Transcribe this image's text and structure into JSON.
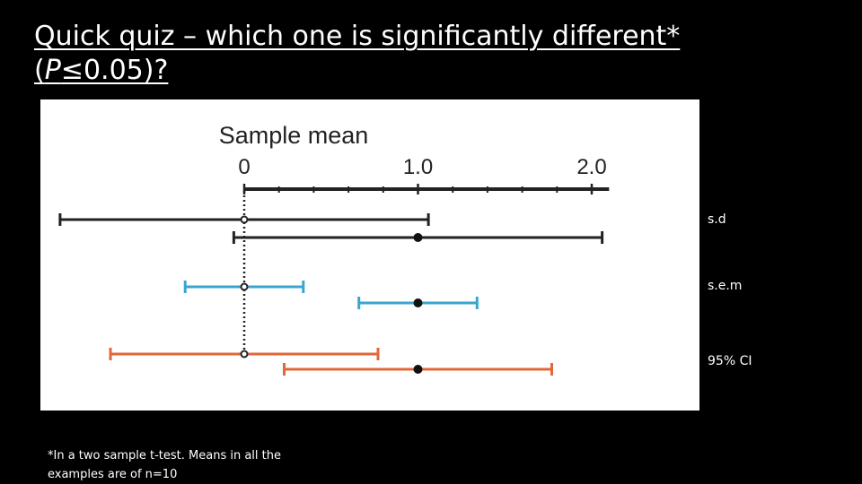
{
  "slide": {
    "title_line1": "Quick quiz – which one is significantly different*",
    "title_p": "P",
    "title_rest": "≤0.05)?",
    "title_open": "(",
    "footnote": "*In a two sample t-test. Means in all the examples are of n=10"
  },
  "row_labels": [
    "s.d",
    "s.e.m",
    "95% CI"
  ],
  "colors": {
    "sd": "#222222",
    "sem": "#3aa6d0",
    "ci": "#e2673a",
    "background": "#000000",
    "panel": "#ffffff"
  },
  "chart_data": {
    "type": "errorbar",
    "title": "Sample mean",
    "x_ticks": [
      {
        "value": 0,
        "label": "0"
      },
      {
        "value": 1.0,
        "label": "1.0"
      },
      {
        "value": 2.0,
        "label": "2.0"
      }
    ],
    "xlim": [
      0,
      2.1
    ],
    "minor_tick_step": 0.2,
    "reference_line_x": 0,
    "series": [
      {
        "group": "s.d",
        "mean": 0,
        "low": -1.06,
        "high": 1.06,
        "marker": "open",
        "color": "#222222"
      },
      {
        "group": "s.d",
        "mean": 1.0,
        "low": -0.06,
        "high": 2.06,
        "marker": "filled",
        "color": "#222222"
      },
      {
        "group": "s.e.m",
        "mean": 0,
        "low": -0.34,
        "high": 0.34,
        "marker": "open",
        "color": "#3aa6d0"
      },
      {
        "group": "s.e.m",
        "mean": 1.0,
        "low": 0.66,
        "high": 1.34,
        "marker": "filled",
        "color": "#3aa6d0"
      },
      {
        "group": "95% CI",
        "mean": 0,
        "low": -0.77,
        "high": 0.77,
        "marker": "open",
        "color": "#e2673a"
      },
      {
        "group": "95% CI",
        "mean": 1.0,
        "low": 0.23,
        "high": 1.77,
        "marker": "filled",
        "color": "#e2673a"
      }
    ]
  }
}
